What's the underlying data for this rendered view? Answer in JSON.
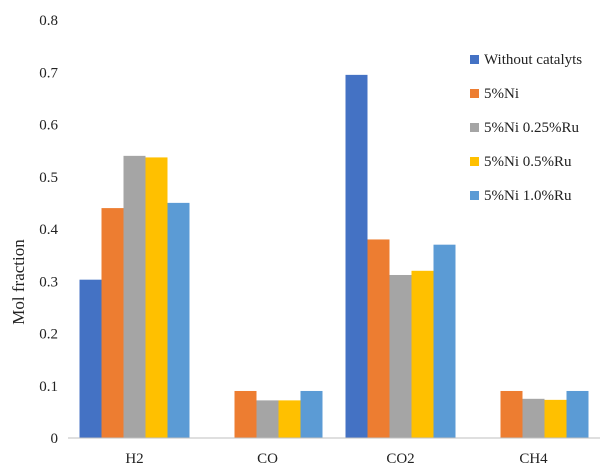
{
  "chart_data": {
    "type": "bar",
    "title": "",
    "xlabel": "",
    "ylabel": "Mol fraction",
    "ylim": [
      0,
      0.8
    ],
    "yticks": [
      0,
      0.1,
      0.2,
      0.3,
      0.4,
      0.5,
      0.6,
      0.7,
      0.8
    ],
    "ytick_labels": [
      "0",
      "0.1",
      "0.2",
      "0.3",
      "0.4",
      "0.5",
      "0.6",
      "0.7",
      "0.8"
    ],
    "grid": false,
    "legend_position": "right",
    "categories": [
      "H2",
      "CO",
      "CO2",
      "CH4"
    ],
    "series": [
      {
        "name": "Without catalyts",
        "color": "#4472C4",
        "values": [
          0.303,
          0,
          0.695,
          0
        ]
      },
      {
        "name": "5%Ni",
        "color": "#ED7D31",
        "values": [
          0.44,
          0.09,
          0.38,
          0.09
        ]
      },
      {
        "name": "5%Ni 0.25%Ru",
        "color": "#A5A5A5",
        "values": [
          0.54,
          0.072,
          0.312,
          0.075
        ]
      },
      {
        "name": "5%Ni 0.5%Ru",
        "color": "#FFC000",
        "values": [
          0.537,
          0.072,
          0.32,
          0.073
        ]
      },
      {
        "name": "5%Ni 1.0%Ru",
        "color": "#5B9BD5",
        "values": [
          0.45,
          0.09,
          0.37,
          0.09
        ]
      }
    ]
  }
}
